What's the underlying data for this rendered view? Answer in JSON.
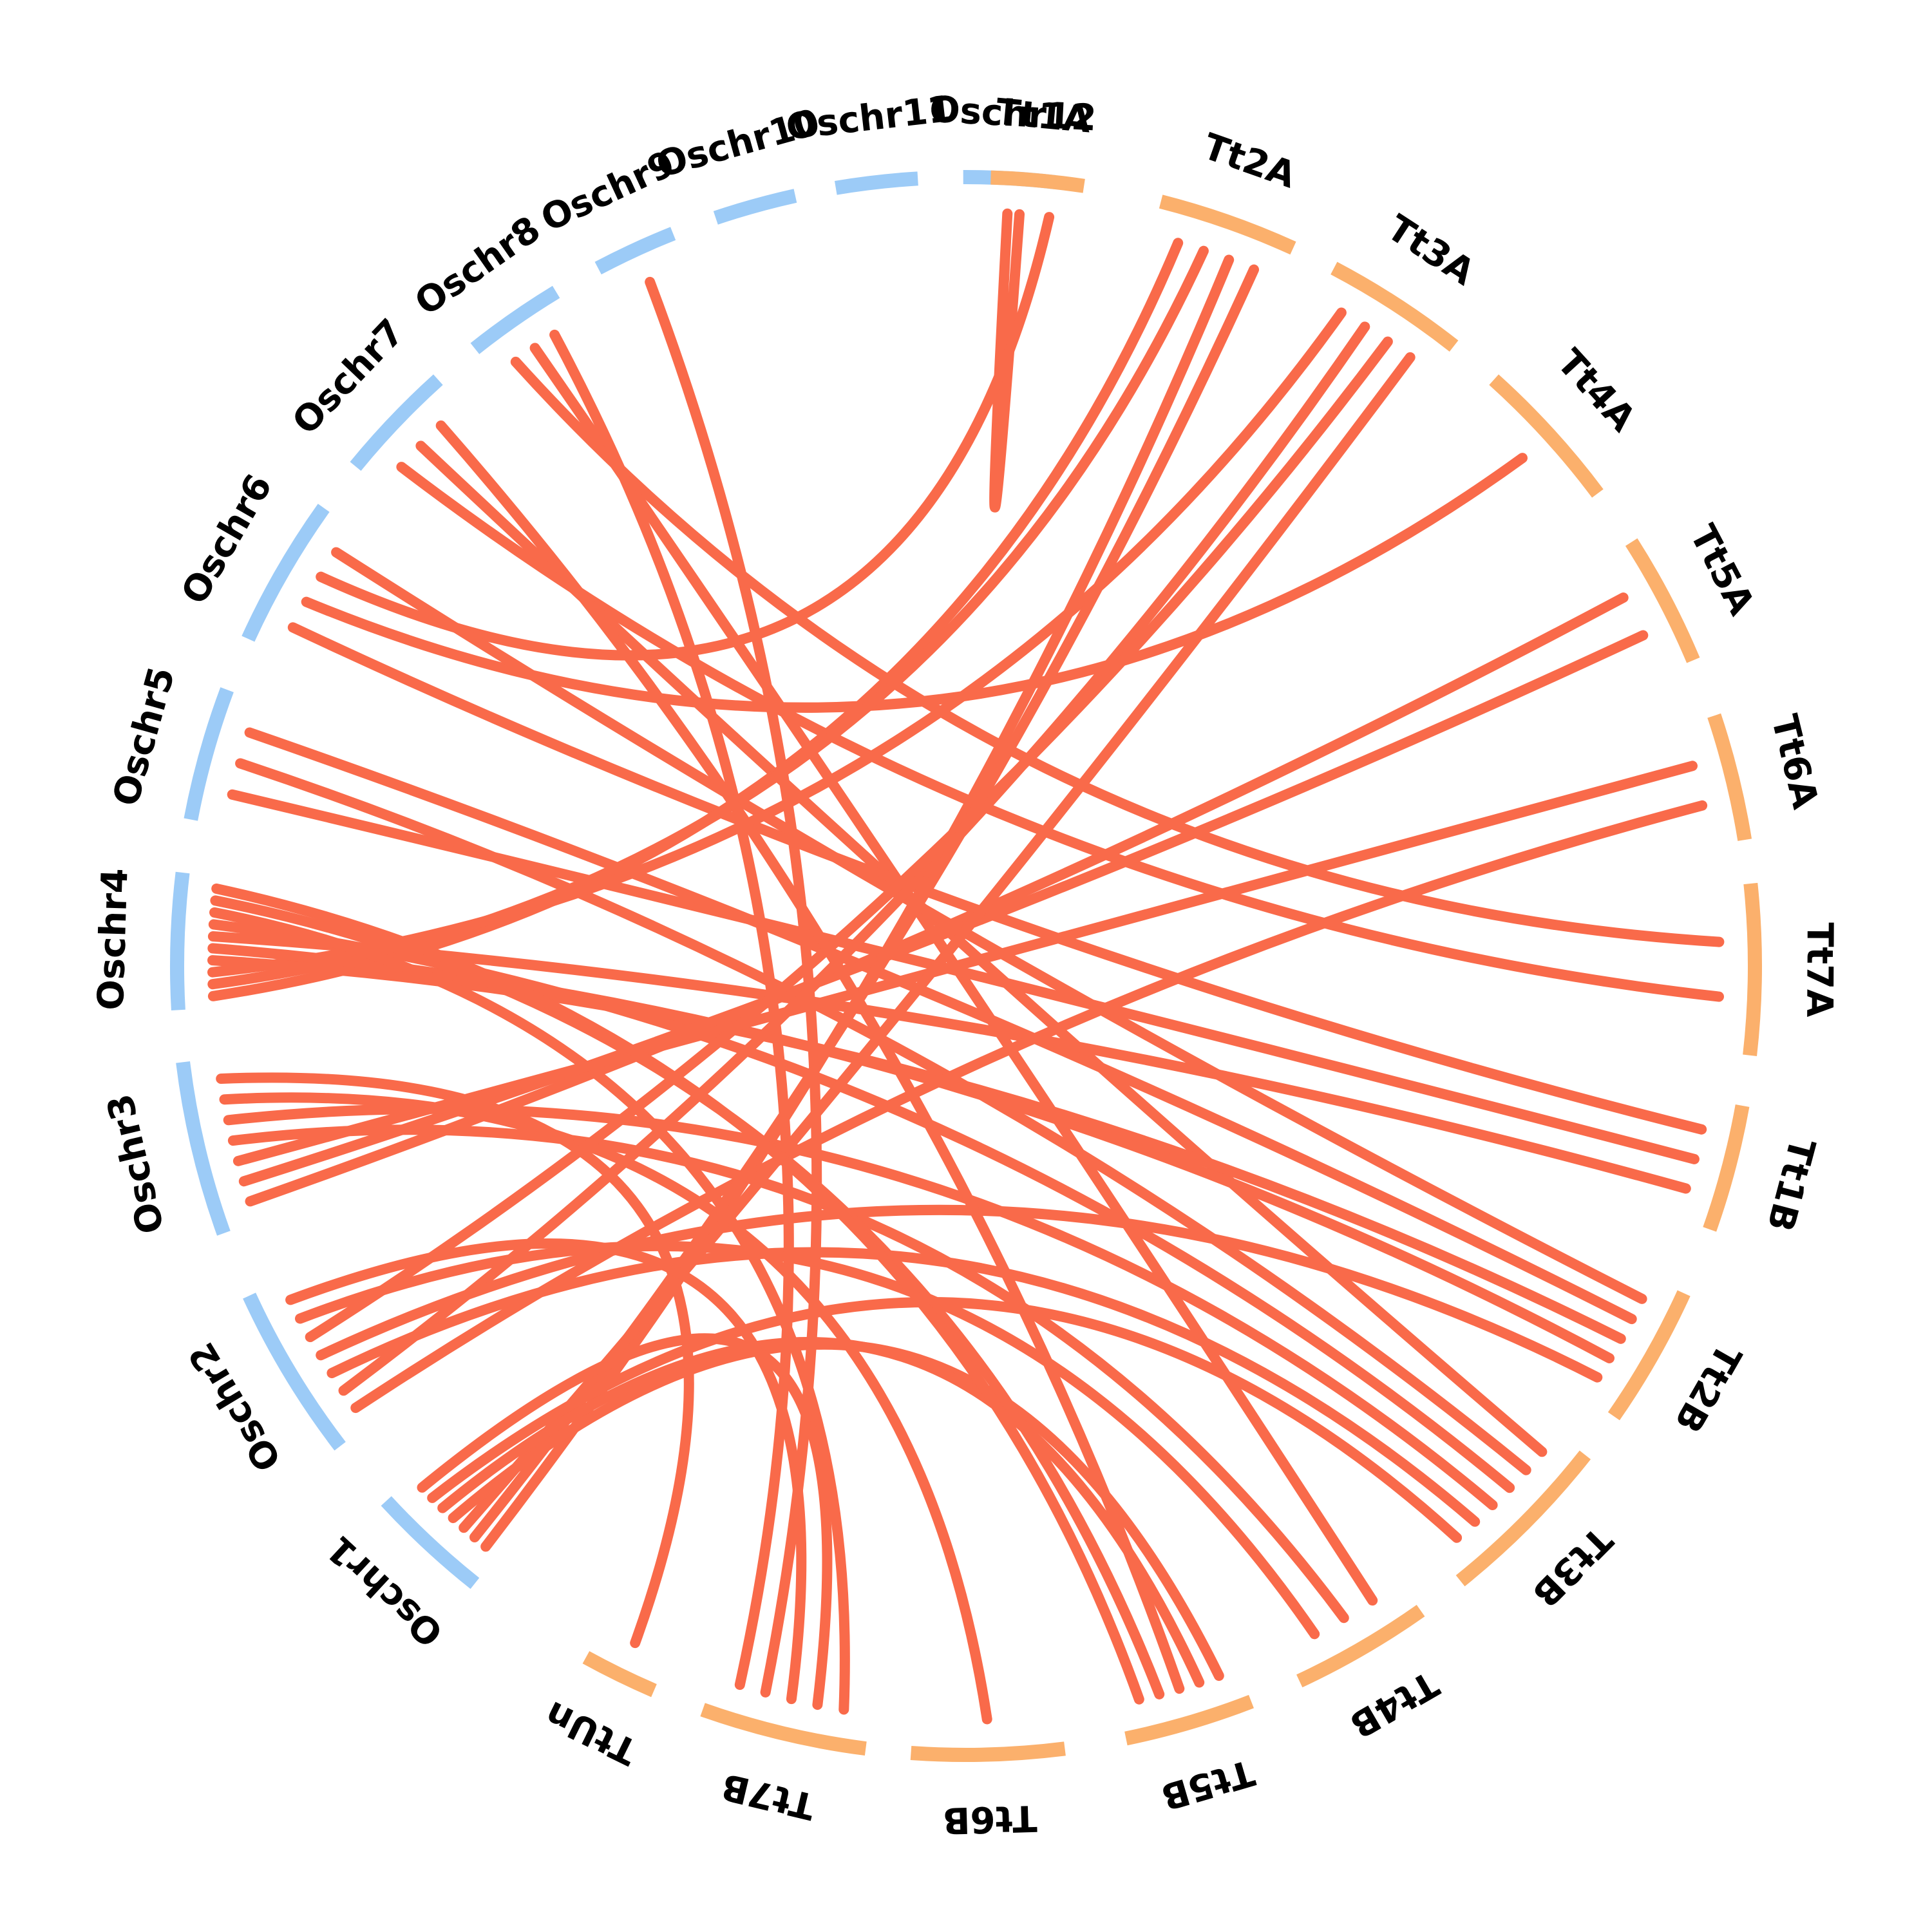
{
  "colors": {
    "rice": "#9ccbf7",
    "wheat": "#fbb06c",
    "link": "#f96a4a",
    "background": "#ffffff"
  },
  "segments": [
    {
      "id": "Oschr1",
      "label": "Oschr1",
      "group": "rice"
    },
    {
      "id": "Oschr2",
      "label": "Oschr2",
      "group": "rice"
    },
    {
      "id": "Oschr3",
      "label": "Oschr3",
      "group": "rice"
    },
    {
      "id": "Oschr4",
      "label": "Oschr4",
      "group": "rice"
    },
    {
      "id": "Oschr5",
      "label": "Oschr5",
      "group": "rice"
    },
    {
      "id": "Oschr6",
      "label": "Oschr6",
      "group": "rice"
    },
    {
      "id": "Oschr7",
      "label": "Oschr7",
      "group": "rice"
    },
    {
      "id": "Oschr8",
      "label": "Oschr8",
      "group": "rice"
    },
    {
      "id": "Oschr9",
      "label": "Oschr9",
      "group": "rice"
    },
    {
      "id": "Oschr10",
      "label": "Oschr10",
      "group": "rice"
    },
    {
      "id": "Oschr11",
      "label": "Oschr11",
      "group": "rice"
    },
    {
      "id": "Oschr12",
      "label": "Oschr12",
      "group": "rice"
    },
    {
      "id": "Tt1A",
      "label": "Tt1A",
      "group": "wheat"
    },
    {
      "id": "Tt2A",
      "label": "Tt2A",
      "group": "wheat"
    },
    {
      "id": "Tt3A",
      "label": "Tt3A",
      "group": "wheat"
    },
    {
      "id": "Tt4A",
      "label": "Tt4A",
      "group": "wheat"
    },
    {
      "id": "Tt5A",
      "label": "Tt5A",
      "group": "wheat"
    },
    {
      "id": "Tt6A",
      "label": "Tt6A",
      "group": "wheat"
    },
    {
      "id": "Tt7A",
      "label": "Tt7A",
      "group": "wheat"
    },
    {
      "id": "Tt1B",
      "label": "Tt1B",
      "group": "wheat"
    },
    {
      "id": "Tt2B",
      "label": "Tt2B",
      "group": "wheat"
    },
    {
      "id": "Tt3B",
      "label": "Tt3B",
      "group": "wheat"
    },
    {
      "id": "Tt4B",
      "label": "Tt4B",
      "group": "wheat"
    },
    {
      "id": "Tt5B",
      "label": "Tt5B",
      "group": "wheat"
    },
    {
      "id": "Tt6B",
      "label": "Tt6B",
      "group": "wheat"
    },
    {
      "id": "Tt7B",
      "label": "Tt7B",
      "group": "wheat"
    },
    {
      "id": "TtUn",
      "label": "TtUn",
      "group": "wheat"
    }
  ],
  "links": [
    {
      "from": "Oschr12",
      "to": "Tt1A"
    },
    {
      "from": "Oschr8",
      "to": "Tt7A"
    },
    {
      "from": "Oschr8",
      "to": "Tt4B"
    },
    {
      "from": "Oschr7",
      "to": "Tt7A"
    },
    {
      "from": "Oschr7",
      "to": "Tt3B"
    },
    {
      "from": "Oschr6",
      "to": "Tt1B"
    },
    {
      "from": "Oschr6",
      "to": "Tt4A"
    },
    {
      "from": "Oschr6",
      "to": "Tt1A"
    },
    {
      "from": "Oschr6",
      "to": "Tt2B"
    },
    {
      "from": "Oschr5",
      "to": "Tt1B"
    },
    {
      "from": "Oschr5",
      "to": "Tt3B"
    },
    {
      "from": "Oschr5",
      "to": "Tt2B"
    },
    {
      "from": "Oschr4",
      "to": "Tt2A"
    },
    {
      "from": "Oschr4",
      "to": "Tt2A"
    },
    {
      "from": "Oschr4",
      "to": "Tt3A"
    },
    {
      "from": "Oschr4",
      "to": "Tt2B"
    },
    {
      "from": "Oschr4",
      "to": "Tt2B"
    },
    {
      "from": "Oschr4",
      "to": "Tt1B"
    },
    {
      "from": "Oschr4",
      "to": "Tt3B"
    },
    {
      "from": "Oschr4",
      "to": "Tt7B"
    },
    {
      "from": "Oschr3",
      "to": "Tt5A"
    },
    {
      "from": "Oschr3",
      "to": "Tt5A"
    },
    {
      "from": "Oschr3",
      "to": "Tt6A"
    },
    {
      "from": "Oschr3",
      "to": "Tt4B"
    },
    {
      "from": "Oschr3",
      "to": "Tt3B"
    },
    {
      "from": "Oschr3",
      "to": "Tt6B"
    },
    {
      "from": "Oschr3",
      "to": "TtUn"
    },
    {
      "from": "Oschr2",
      "to": "Tt6A"
    },
    {
      "from": "Oschr2",
      "to": "Tt3A"
    },
    {
      "from": "Oschr2",
      "to": "Tt3B"
    },
    {
      "from": "Oschr2",
      "to": "Tt2B"
    },
    {
      "from": "Oschr2",
      "to": "Tt3A"
    },
    {
      "from": "Oschr2",
      "to": "Tt4B"
    },
    {
      "from": "Oschr1",
      "to": "Tt2A"
    },
    {
      "from": "Oschr1",
      "to": "Tt2A"
    },
    {
      "from": "Oschr1",
      "to": "Tt3A"
    },
    {
      "from": "Oschr1",
      "to": "Tt5B"
    },
    {
      "from": "Oschr1",
      "to": "Tt5B"
    },
    {
      "from": "Oschr1",
      "to": "Tt3B"
    },
    {
      "from": "Oschr1",
      "to": "Tt7B"
    },
    {
      "from": "Oschr2",
      "to": "Tt7B"
    },
    {
      "from": "Oschr9",
      "to": "Tt7B"
    },
    {
      "from": "Oschr8",
      "to": "Tt7B"
    },
    {
      "from": "Oschr7",
      "to": "Tt5B"
    },
    {
      "from": "Oschr4",
      "to": "Tt5B"
    },
    {
      "from": "Oschr4",
      "to": "Tt5B"
    }
  ]
}
